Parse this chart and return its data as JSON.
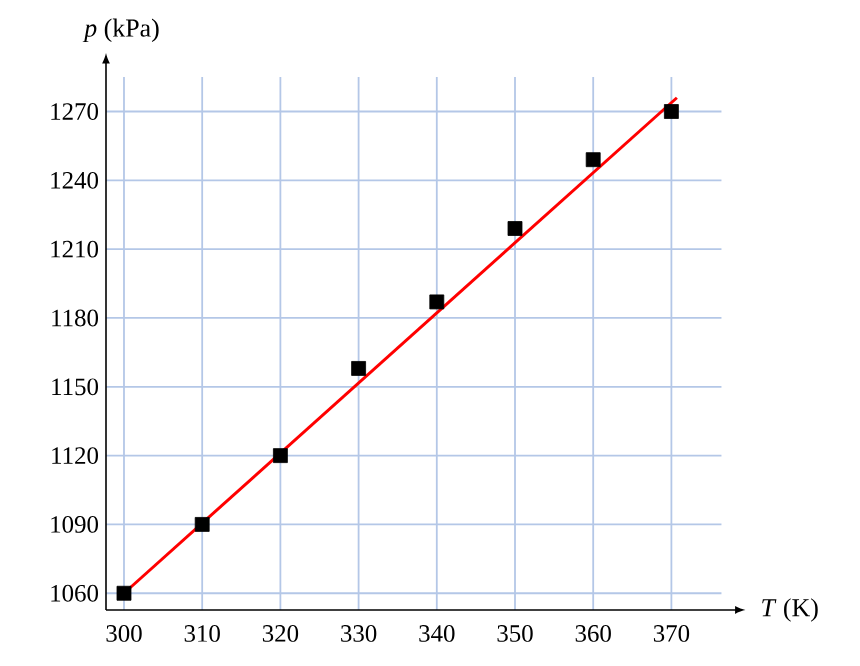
{
  "chart_data": {
    "type": "scatter",
    "xlabel": "*T* (K)",
    "ylabel": "*p* (kPa)",
    "xlim": [
      297.7,
      376.4
    ],
    "ylim": [
      1052.7,
      1285
    ],
    "xticks": [
      300,
      310,
      320,
      330,
      340,
      350,
      360,
      370
    ],
    "yticks": [
      1060,
      1090,
      1120,
      1150,
      1180,
      1210,
      1240,
      1270
    ],
    "grid": true,
    "marker": "square",
    "series": [
      {
        "type": "line",
        "color": "#ff0000",
        "x": [
          300,
          370.7
        ],
        "values": [
          1060,
          1276
        ],
        "marker": "none",
        "line_style": "solid"
      },
      {
        "color": "#000000",
        "x": [
          300,
          310,
          320,
          330,
          340,
          350,
          360,
          370
        ],
        "values": [
          1060,
          1090,
          1120,
          1158,
          1187,
          1219,
          1249,
          1270
        ]
      }
    ]
  }
}
